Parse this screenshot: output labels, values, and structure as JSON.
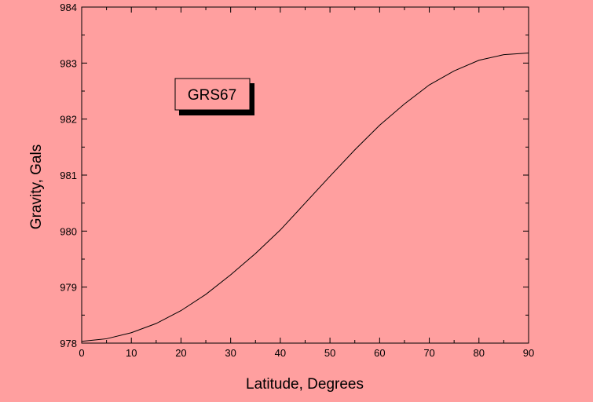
{
  "chart_data": {
    "type": "line",
    "title": "",
    "xlabel": "Latitude, Degrees",
    "ylabel": "Gravity, Gals",
    "xlim": [
      0,
      90
    ],
    "ylim": [
      978,
      984
    ],
    "xticks": [
      0,
      10,
      20,
      30,
      40,
      50,
      60,
      70,
      80,
      90
    ],
    "yticks": [
      978,
      979,
      980,
      981,
      982,
      983,
      984
    ],
    "grid": false,
    "legend": {
      "label": "GRS67",
      "placement": "top-left"
    },
    "series": [
      {
        "name": "GRS67",
        "x": [
          0,
          5,
          10,
          15,
          20,
          25,
          30,
          35,
          40,
          45,
          50,
          55,
          60,
          65,
          70,
          75,
          80,
          85,
          90
        ],
        "y": [
          978.031,
          978.078,
          978.186,
          978.35,
          978.58,
          978.87,
          979.22,
          979.6,
          980.02,
          980.5,
          980.98,
          981.45,
          981.89,
          982.27,
          982.61,
          982.86,
          983.05,
          983.15,
          983.18
        ]
      }
    ],
    "colors": {
      "background": "#ff9f9f",
      "line": "#000000",
      "legend_shadow": "#000000"
    }
  }
}
